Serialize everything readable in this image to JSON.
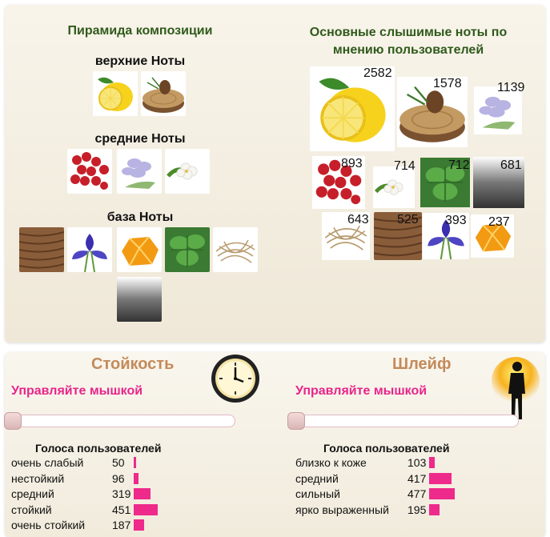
{
  "pyramid": {
    "title": "Пирамида композиции",
    "top_label": "верхние Ноты",
    "middle_label": "средние Ноты",
    "base_label": "база Ноты",
    "top_notes": [
      "lemon",
      "pine-wood"
    ],
    "middle_notes": [
      "pink-pepper",
      "violet-flower",
      "jasmine"
    ],
    "base_notes": [
      "vetiver-wood",
      "iris",
      "amber",
      "patchouli",
      "vetiver-root",
      "musk"
    ]
  },
  "popular": {
    "title_line1": "Основные слышимые ноты по",
    "title_line2": "мнению пользователей",
    "notes": [
      {
        "icon": "lemon",
        "count": "2582"
      },
      {
        "icon": "pine-wood",
        "count": "1578"
      },
      {
        "icon": "violet-flower",
        "count": "1139"
      },
      {
        "icon": "pink-pepper",
        "count": "893"
      },
      {
        "icon": "jasmine",
        "count": "714"
      },
      {
        "icon": "patchouli",
        "count": "712"
      },
      {
        "icon": "musk",
        "count": "681"
      },
      {
        "icon": "vetiver-root",
        "count": "643"
      },
      {
        "icon": "vetiver-wood",
        "count": "525"
      },
      {
        "icon": "iris",
        "count": "393"
      },
      {
        "icon": "amber",
        "count": "237"
      }
    ]
  },
  "longevity": {
    "title": "Стойкость",
    "hint": "Управляйте мышкой",
    "votes_title": "Голоса пользователей",
    "rows": [
      {
        "label": "очень слабый",
        "count": "50",
        "value": 50
      },
      {
        "label": "нестойкий",
        "count": "96",
        "value": 96
      },
      {
        "label": "средний",
        "count": "319",
        "value": 319
      },
      {
        "label": "стойкий",
        "count": "451",
        "value": 451
      },
      {
        "label": "очень стойкий",
        "count": "187",
        "value": 187
      }
    ]
  },
  "sillage": {
    "title": "Шлейф",
    "hint": "Управляйте мышкой",
    "votes_title": "Голоса пользователей",
    "rows": [
      {
        "label": "близко к коже",
        "count": "103",
        "value": 103
      },
      {
        "label": "средний",
        "count": "417",
        "value": 417
      },
      {
        "label": "сильный",
        "count": "477",
        "value": 477
      },
      {
        "label": "ярко выраженный",
        "count": "195",
        "value": 195
      }
    ]
  },
  "colors": {
    "accent_pink": "#ee2a8b",
    "title_green": "#2f5a1b",
    "section_tan": "#c48a5a"
  }
}
